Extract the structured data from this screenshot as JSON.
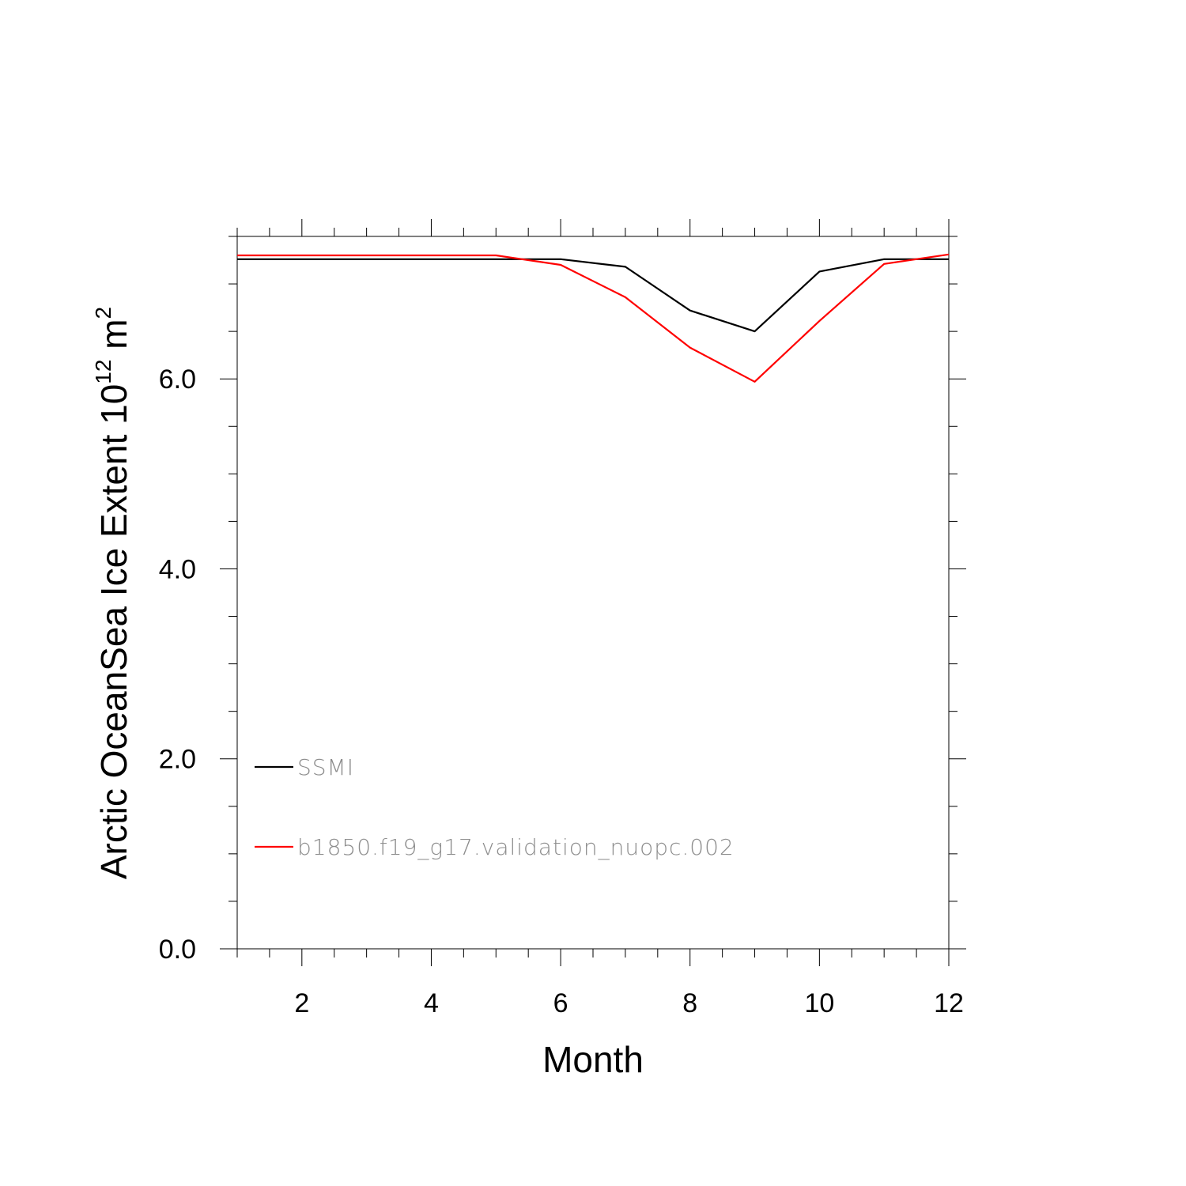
{
  "chart_data": {
    "type": "line",
    "xlabel": "Month",
    "ylabel": {
      "prefix": "Arctic OceanSea Ice Extent 10",
      "exponent": "12",
      "unit_base": " m",
      "unit_exponent": "2"
    },
    "xlim": [
      1,
      12
    ],
    "ylim": [
      0,
      7.5
    ],
    "x_ticks": [
      2,
      4,
      6,
      8,
      10,
      12
    ],
    "x_tick_labels": [
      "2",
      "4",
      "6",
      "8",
      "10",
      "12"
    ],
    "y_ticks": [
      0,
      2,
      4,
      6
    ],
    "y_tick_labels": [
      "0.0",
      "2.0",
      "4.0",
      "6.0"
    ],
    "x_minor_step": 0.5,
    "y_minor_step": 0.5,
    "grid": false,
    "legend_position": "bottom-left",
    "x": [
      1,
      2,
      3,
      4,
      5,
      6,
      7,
      8,
      9,
      10,
      11,
      12
    ],
    "series": [
      {
        "name": "SSMI",
        "color": "#000000",
        "values": [
          7.26,
          7.26,
          7.26,
          7.26,
          7.26,
          7.26,
          7.18,
          6.72,
          6.5,
          7.13,
          7.26,
          7.26
        ]
      },
      {
        "name": "b1850.f19_g17.validation_nuopc.002",
        "color": "#ff0000",
        "values": [
          7.3,
          7.3,
          7.3,
          7.3,
          7.3,
          7.2,
          6.86,
          6.33,
          5.97,
          6.61,
          7.21,
          7.31
        ]
      }
    ]
  }
}
